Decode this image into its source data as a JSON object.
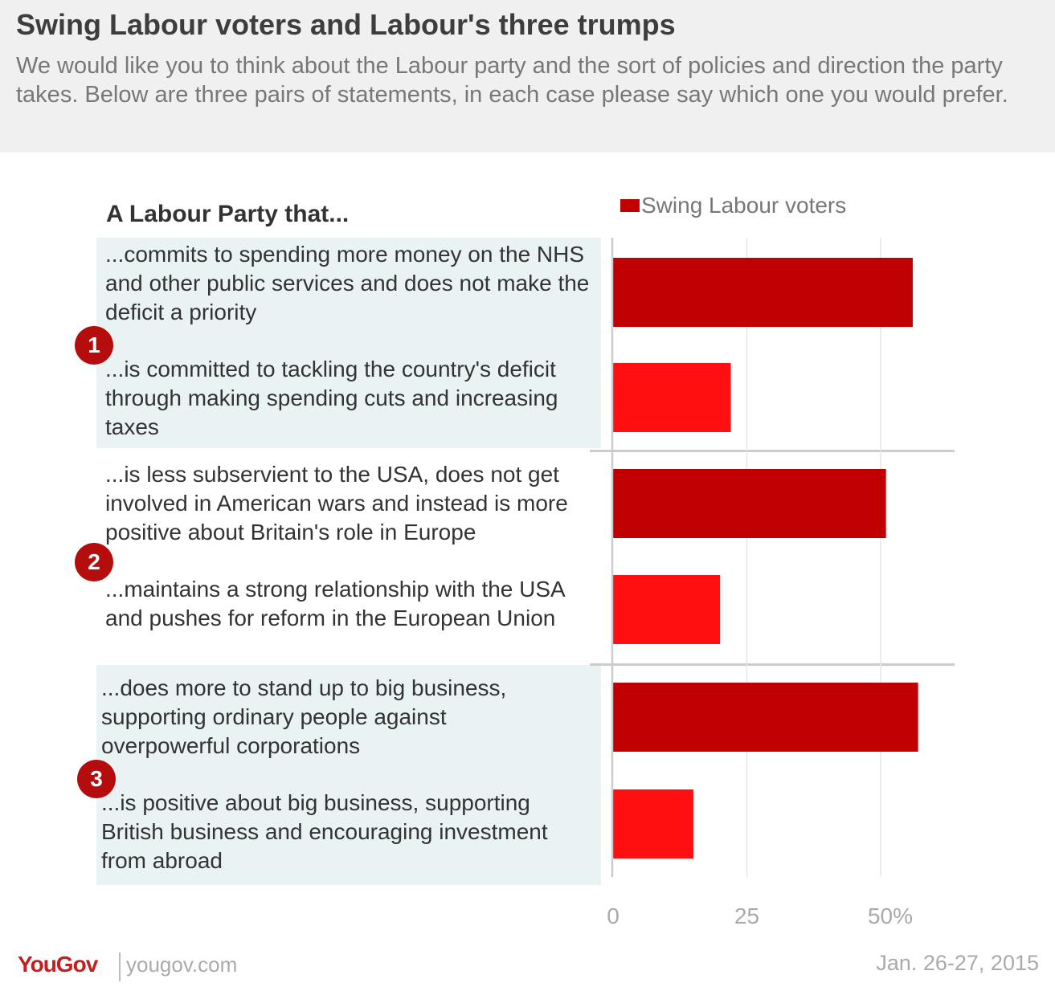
{
  "header": {
    "title": "Swing Labour voters and Labour's three trumps",
    "subtitle": "We would like you to think about the Labour party and the sort of policies and direction the party takes. Below are three pairs of statements, in each case please say which one you would prefer."
  },
  "column_heading": "A Labour Party that...",
  "legend_label": "Swing Labour voters",
  "groups": [
    {
      "number": "1",
      "statements": [
        "...commits to spending more money on the NHS and other public services and does not make the deficit a priority",
        "...is committed to tackling the country's deficit through making spending cuts and increasing taxes"
      ]
    },
    {
      "number": "2",
      "statements": [
        "...is less subservient to the USA, does not get involved in American wars and instead is more positive about Britain's role in Europe",
        "...maintains a strong relationship with the USA and pushes for reform in the European Union"
      ]
    },
    {
      "number": "3",
      "statements": [
        "...does more to stand up to big business, supporting ordinary people against overpowerful corporations",
        "...is positive about big business, supporting British business and encouraging investment from abroad"
      ]
    }
  ],
  "footer": {
    "brand": "YouGov",
    "site": "yougov.com",
    "date": "Jan. 26-27, 2015"
  },
  "colors": {
    "first_option": "#c00000",
    "second_option": "#ff0f0f",
    "badge": "#b50d0d",
    "panel": "#e9f3f3"
  },
  "chart_data": {
    "type": "bar",
    "orientation": "horizontal",
    "series": [
      {
        "name": "Swing Labour voters",
        "values": [
          56,
          22,
          51,
          20,
          57,
          15
        ]
      }
    ],
    "xlim": [
      0,
      60
    ],
    "x_ticks": [
      0,
      25,
      50
    ],
    "x_tick_labels": [
      "0",
      "25",
      "50%"
    ],
    "grid": true,
    "legend_position": "top"
  }
}
